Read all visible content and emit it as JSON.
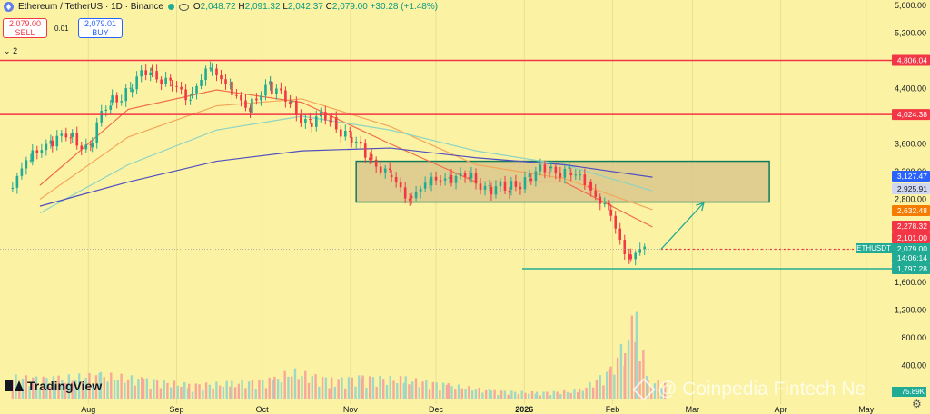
{
  "header": {
    "symbol": "Ethereum / TetherUS · 1D · Binance",
    "open_label": "O",
    "open": "2,048.72",
    "high_label": "H",
    "high": "2,091.32",
    "low_label": "L",
    "low": "2,042.37",
    "close_label": "C",
    "close": "2,079.00",
    "change": "+30.28 (+1.48%)"
  },
  "trade": {
    "sell_price": "2,079.00",
    "sell_label": "SELL",
    "buy_price": "2,079.01",
    "buy_label": "BUY",
    "spread": "0.01"
  },
  "indicators_count": "2",
  "logo_text": "TradingView",
  "watermark": "@ Coinpedia Fintech Ne",
  "colors": {
    "background": "#fbf3a3",
    "up": "#22ab94",
    "down": "#f23645",
    "ma_fast": "#f26d4a",
    "ma_mid": "#f5a65b",
    "ma_slow": "#8fd3c3",
    "ma_long": "#4f4fbf",
    "box_fill": "#d8c48a",
    "box_border": "#127a5c",
    "resistance": "#f23645",
    "support": "#22ab94",
    "projection": "#22ab94"
  },
  "chart_data": {
    "type": "candlestick",
    "symbol": "ETHUSDT",
    "timeframe": "1D",
    "y_axis": {
      "ticks": [
        5600,
        5200,
        4400,
        3600,
        3200,
        2800,
        1600,
        1200,
        800,
        400,
        0
      ],
      "tick_labels": [
        "5,600.00",
        "5,200.00",
        "4,400.00",
        "3,600.00",
        "3,200.00",
        "2,800.00",
        "1,600.00",
        "1,200.00",
        "800.00",
        "400.00",
        "0.00"
      ]
    },
    "price_ylim": [
      1300,
      5700
    ],
    "x_axis": {
      "labels": [
        "Aug",
        "Sep",
        "Oct",
        "Nov",
        "Dec",
        "2026",
        "Feb",
        "Mar",
        "Apr",
        "May"
      ],
      "dates": [
        "2025-08-01",
        "2025-09-01",
        "2025-10-01",
        "2025-11-01",
        "2025-12-01",
        "2026-01-01",
        "2026-02-01",
        "2026-03-01",
        "2026-04-01",
        "2026-05-01"
      ],
      "range": [
        "2025-07-01",
        "2026-05-10"
      ]
    },
    "price_series": {
      "dates": [
        "2025-07-05",
        "2025-07-12",
        "2025-07-19",
        "2025-07-26",
        "2025-08-02",
        "2025-08-09",
        "2025-08-16",
        "2025-08-23",
        "2025-08-30",
        "2025-09-06",
        "2025-09-13",
        "2025-09-20",
        "2025-09-27",
        "2025-10-04",
        "2025-10-11",
        "2025-10-18",
        "2025-10-25",
        "2025-11-01",
        "2025-11-08",
        "2025-11-15",
        "2025-11-22",
        "2025-11-29",
        "2025-12-06",
        "2025-12-13",
        "2025-12-20",
        "2025-12-27",
        "2026-01-03",
        "2026-01-10",
        "2026-01-17",
        "2026-01-24",
        "2026-01-31",
        "2026-02-07",
        "2026-02-13"
      ],
      "close": [
        2950,
        3350,
        3650,
        3700,
        3550,
        4200,
        4350,
        4700,
        4450,
        4300,
        4650,
        4500,
        4050,
        4500,
        4200,
        3900,
        4000,
        3700,
        3450,
        3150,
        2850,
        3000,
        3150,
        3100,
        2980,
        2940,
        3100,
        3250,
        3180,
        3050,
        2650,
        2000,
        2079
      ]
    },
    "moving_averages": [
      {
        "dates": [
          "2025-07-15",
          "2025-08-15",
          "2025-09-15",
          "2025-10-15",
          "2025-11-15",
          "2025-12-15",
          "2026-01-15",
          "2026-02-15"
        ],
        "values": [
          3000,
          4100,
          4380,
          4200,
          3600,
          3050,
          3050,
          2400
        ]
      },
      {
        "dates": [
          "2025-07-15",
          "2025-08-15",
          "2025-09-15",
          "2025-10-15",
          "2025-11-15",
          "2025-12-15",
          "2026-01-15",
          "2026-02-15"
        ],
        "values": [
          2800,
          3700,
          4150,
          4250,
          3850,
          3300,
          3100,
          2650
        ]
      },
      {
        "dates": [
          "2025-07-15",
          "2025-08-15",
          "2025-09-15",
          "2025-10-15",
          "2025-11-15",
          "2025-12-15",
          "2026-01-15",
          "2026-02-15"
        ],
        "values": [
          2600,
          3300,
          3800,
          4000,
          3800,
          3500,
          3300,
          2920
        ]
      },
      {
        "dates": [
          "2025-07-15",
          "2025-08-15",
          "2025-09-15",
          "2025-10-15",
          "2025-11-15",
          "2025-12-15",
          "2026-01-15",
          "2026-02-15"
        ],
        "values": [
          2700,
          3050,
          3350,
          3500,
          3540,
          3400,
          3300,
          3120
        ]
      }
    ],
    "levels": [
      {
        "price": 4806.04,
        "label": "4,806.04",
        "color": "#f23645",
        "style": "solid"
      },
      {
        "price": 4024.38,
        "label": "4,024.38",
        "color": "#f23645",
        "style": "solid"
      },
      {
        "price": 1797.28,
        "label": "1,797.28",
        "color": "#22ab94",
        "style": "solid"
      }
    ],
    "price_tags": [
      {
        "price": 3127.47,
        "label": "3,127.47",
        "color": "#2962ff"
      },
      {
        "price": 2925.91,
        "label": "2,925.91",
        "color": "#cfd8f0",
        "text_color": "#131722"
      },
      {
        "price": 2632.48,
        "label": "2,632.48",
        "color": "#f57c00"
      },
      {
        "price": 2278.32,
        "label": "2,278.32",
        "color": "#f23645"
      },
      {
        "price": 2101.0,
        "label": "2,101.00",
        "color": "#f23645"
      }
    ],
    "current_price": {
      "price": 2079.0,
      "label": "2,079.00",
      "countdown": "14:06:14",
      "symbol_tag": "ETHUSDT",
      "color": "#22ab94"
    },
    "range_box": {
      "top": 3350,
      "bottom": 2760,
      "start": "2025-11-03",
      "end": "2026-03-28"
    },
    "projection_arrow": {
      "from_date": "2026-02-18",
      "from_price": 2080,
      "to_date": "2026-03-05",
      "to_price": 2750
    },
    "volume_ylim": [
      0,
      1500
    ],
    "volume_dates": [
      "2025-07-05",
      "2025-07-20",
      "2025-08-05",
      "2025-08-20",
      "2025-09-05",
      "2025-09-20",
      "2025-10-05",
      "2025-10-11",
      "2025-10-25",
      "2025-11-05",
      "2025-11-20",
      "2025-12-05",
      "2025-12-20",
      "2026-01-05",
      "2026-01-20",
      "2026-01-31",
      "2026-02-05",
      "2026-02-09",
      "2026-02-13"
    ],
    "volume_values": [
      380,
      360,
      420,
      350,
      250,
      280,
      350,
      480,
      340,
      380,
      350,
      250,
      150,
      120,
      150,
      500,
      1000,
      1450,
      300
    ],
    "volume_label": "75.89K"
  }
}
